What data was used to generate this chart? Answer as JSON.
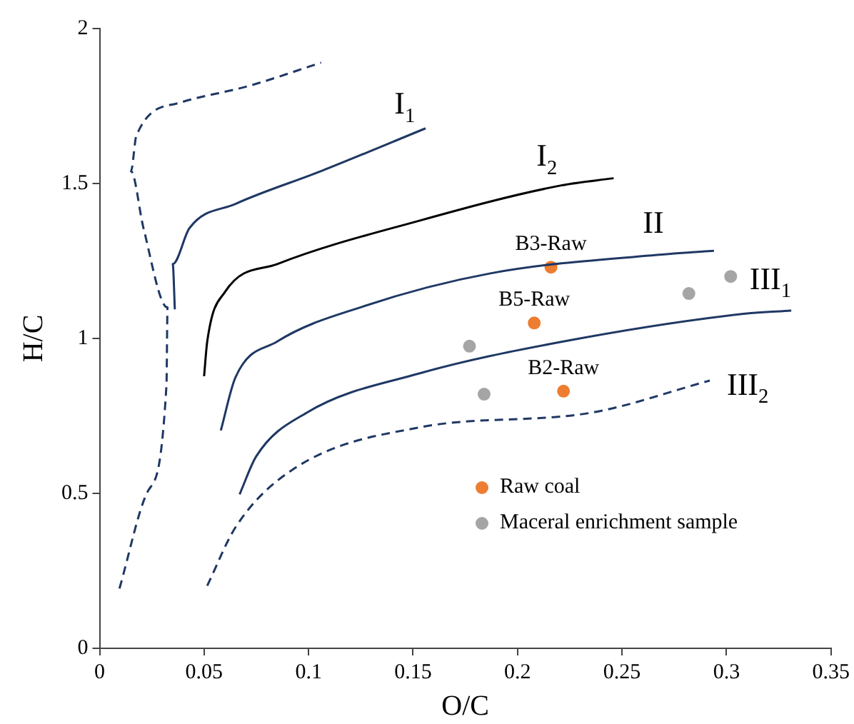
{
  "chart_data": {
    "type": "scatter",
    "xlabel": "O/C",
    "ylabel": "H/C",
    "xlim": [
      0,
      0.35
    ],
    "xticks": [
      0,
      0.05,
      0.1,
      0.15,
      0.2,
      0.25,
      0.3,
      0.35
    ],
    "ylim": [
      0,
      2
    ],
    "yticks": [
      0,
      0.5,
      1,
      1.5,
      2
    ],
    "grid": false,
    "legend": "bottom right",
    "series": [
      {
        "type": "line",
        "marker": "none",
        "color": "#1f3864",
        "line_style": "dashed",
        "x": [
          0.0095,
          0.023,
          0.032,
          0.0325,
          0.021,
          0.015,
          0.0176,
          0.038,
          0.072,
          0.106
        ],
        "values": [
          0.193,
          0.506,
          0.85,
          1.1,
          1.356,
          1.54,
          1.655,
          1.76,
          1.816,
          1.89
        ]
      },
      {
        "type": "line",
        "marker": "none",
        "color": "#1f3864",
        "line_style": "solid",
        "x": [
          0.036,
          0.035,
          0.043,
          0.065,
          0.106,
          0.156
        ],
        "values": [
          1.094,
          1.24,
          1.356,
          1.434,
          1.54,
          1.678
        ]
      },
      {
        "type": "line",
        "marker": "none",
        "color": "#000000",
        "line_style": "solid",
        "x": [
          0.05,
          0.0515,
          0.06,
          0.085,
          0.153,
          0.221,
          0.246
        ],
        "values": [
          0.878,
          0.99,
          1.15,
          1.24,
          1.38,
          1.494,
          1.517
        ]
      },
      {
        "type": "line",
        "marker": "none",
        "color": "#1f3864",
        "line_style": "solid",
        "x": [
          0.058,
          0.065,
          0.085,
          0.126,
          0.187,
          0.275,
          0.294
        ],
        "values": [
          0.703,
          0.874,
          0.99,
          1.103,
          1.21,
          1.274,
          1.283
        ]
      },
      {
        "type": "line",
        "marker": "none",
        "color": "#1f3864",
        "line_style": "solid",
        "x": [
          0.067,
          0.075,
          0.099,
          0.153,
          0.221,
          0.309,
          0.331
        ],
        "values": [
          0.497,
          0.62,
          0.76,
          0.887,
          0.989,
          1.08,
          1.09
        ]
      },
      {
        "type": "line",
        "marker": "none",
        "color": "#1f3864",
        "line_style": "dashed",
        "x": [
          0.0515,
          0.065,
          0.092,
          0.153,
          0.234,
          0.292
        ],
        "values": [
          0.202,
          0.39,
          0.575,
          0.713,
          0.759,
          0.864
        ]
      },
      {
        "marker": "circle",
        "name": "Raw coal",
        "color": "#ed7d31",
        "x": [
          0.216,
          0.208,
          0.222
        ],
        "values": [
          1.23,
          1.05,
          0.83
        ]
      },
      {
        "marker": "circle",
        "name": "Maceral enrichment sample",
        "color": "#a5a5a5",
        "x": [
          0.177,
          0.184,
          0.282,
          0.302
        ],
        "values": [
          0.975,
          0.82,
          1.145,
          1.2
        ]
      }
    ],
    "annotations": [
      {
        "text": "I$_{1}$",
        "x": 0.146,
        "y": 1.65
      },
      {
        "text": "I$_{2}$",
        "x": 0.214,
        "y": 1.482
      },
      {
        "text": "II",
        "x": 0.265,
        "y": 1.267
      },
      {
        "text": "III$_{1}$",
        "x": 0.321,
        "y": 1.085
      },
      {
        "text": "III$_{2}$",
        "x": 0.292,
        "y": 0.864
      },
      {
        "text": "B3-Raw",
        "x": 0.216,
        "y": 1.23
      },
      {
        "text": "B5-Raw",
        "x": 0.208,
        "y": 1.05
      },
      {
        "text": "B2-Raw",
        "x": 0.222,
        "y": 0.83
      }
    ]
  }
}
